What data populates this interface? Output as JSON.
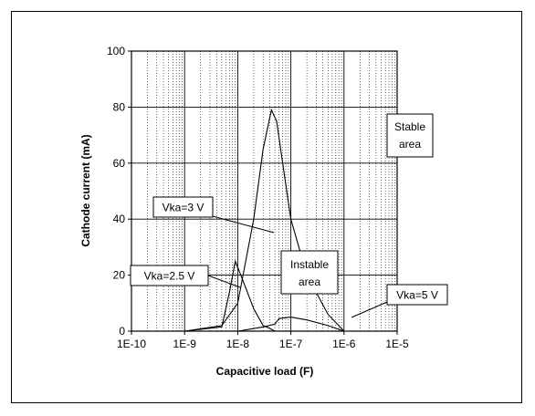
{
  "chart_data": {
    "type": "line",
    "xlabel": "Capacitive load (F)",
    "ylabel": "Cathode current (mA)",
    "x_scale": "log",
    "xlim": [
      1e-10,
      1e-05
    ],
    "ylim": [
      0,
      100
    ],
    "x_ticks": [
      {
        "value": 1e-10,
        "label": "1E-10"
      },
      {
        "value": 1e-09,
        "label": "1E-9"
      },
      {
        "value": 1e-08,
        "label": "1E-8"
      },
      {
        "value": 1e-07,
        "label": "1E-7"
      },
      {
        "value": 1e-06,
        "label": "1E-6"
      },
      {
        "value": 1e-05,
        "label": "1E-5"
      }
    ],
    "y_ticks": [
      {
        "value": 0,
        "label": "0"
      },
      {
        "value": 20,
        "label": "20"
      },
      {
        "value": 40,
        "label": "40"
      },
      {
        "value": 60,
        "label": "60"
      },
      {
        "value": 80,
        "label": "80"
      },
      {
        "value": 100,
        "label": "100"
      }
    ],
    "grid": {
      "major": true,
      "minor_x_dotted": true
    },
    "series": [
      {
        "name": "Vka=3 V",
        "points": [
          [
            1e-09,
            0
          ],
          [
            5e-09,
            2
          ],
          [
            1e-08,
            10
          ],
          [
            2e-08,
            40
          ],
          [
            3e-08,
            65
          ],
          [
            4.3e-08,
            79
          ],
          [
            5.4e-08,
            75
          ],
          [
            7e-08,
            60
          ],
          [
            1e-07,
            40
          ],
          [
            2e-07,
            20
          ],
          [
            5e-07,
            6
          ],
          [
            1e-06,
            0
          ]
        ]
      },
      {
        "name": "Vka=2.5 V",
        "points": [
          [
            1e-09,
            0
          ],
          [
            5e-09,
            1.5
          ],
          [
            7e-09,
            14
          ],
          [
            9e-09,
            25
          ],
          [
            1.2e-08,
            19
          ],
          [
            2e-08,
            8
          ],
          [
            3e-08,
            2
          ],
          [
            4e-08,
            1
          ],
          [
            5e-08,
            0
          ]
        ]
      },
      {
        "name": "Vka=5 V",
        "points": [
          [
            1e-08,
            0
          ],
          [
            3e-08,
            1.5
          ],
          [
            5e-08,
            2.5
          ],
          [
            6e-08,
            4.5
          ],
          [
            1e-07,
            5
          ],
          [
            2e-07,
            4
          ],
          [
            5e-07,
            2
          ],
          [
            1e-06,
            0
          ]
        ]
      }
    ],
    "annotations": [
      {
        "id": "vka3",
        "text": "Vka=3 V"
      },
      {
        "id": "vka25",
        "text": "Vka=2.5 V"
      },
      {
        "id": "vka5",
        "text": "Vka=5 V"
      },
      {
        "id": "instable",
        "lines": [
          "Instable",
          "area"
        ]
      },
      {
        "id": "stable",
        "lines": [
          "Stable",
          "area"
        ]
      }
    ]
  }
}
